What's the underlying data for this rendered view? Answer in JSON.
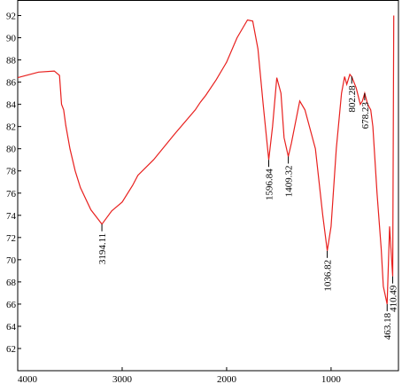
{
  "chart_data": {
    "type": "line",
    "x": [
      4000,
      3800,
      3650,
      3600,
      3580,
      3560,
      3540,
      3500,
      3450,
      3400,
      3300,
      3194.11,
      3100,
      3000,
      2900,
      2850,
      2700,
      2500,
      2300,
      2250,
      2200,
      2100,
      2000,
      1900,
      1800,
      1750,
      1700,
      1650,
      1596.84,
      1560,
      1520,
      1480,
      1450,
      1409.32,
      1380,
      1300,
      1250,
      1150,
      1080,
      1036.82,
      1000,
      950,
      900,
      870,
      850,
      820,
      802.28,
      760,
      720,
      700,
      678.23,
      650,
      620,
      600,
      560,
      520,
      500,
      463.18,
      440,
      420,
      410.49,
      400
    ],
    "values": [
      86.4,
      86.9,
      87.0,
      86.6,
      84,
      83.5,
      82.1,
      80,
      78,
      76.5,
      74.5,
      73.2,
      74.4,
      75.2,
      76.7,
      77.6,
      79,
      81.3,
      83.5,
      84.2,
      84.8,
      86.2,
      87.8,
      90,
      91.6,
      91.5,
      89,
      84,
      79,
      82,
      86.4,
      85,
      81,
      79.3,
      80.5,
      84.3,
      83.5,
      80,
      74,
      70.8,
      73,
      80,
      85,
      86.5,
      85.8,
      86.7,
      86.5,
      85.5,
      84,
      84.3,
      85,
      84,
      83.5,
      82,
      76,
      71,
      67.6,
      66,
      73,
      70,
      68.5,
      92
    ],
    "color": "#e8201e",
    "xlim": [
      4000,
      355
    ],
    "ylim": [
      60,
      93.4
    ],
    "xticks": [
      4000,
      3000,
      2000,
      1000
    ],
    "yticks": [
      62,
      64,
      66,
      68,
      70,
      72,
      74,
      76,
      78,
      80,
      82,
      84,
      86,
      88,
      90,
      92
    ],
    "peaks": [
      3194.11,
      1596.84,
      1409.32,
      1036.82,
      802.28,
      678.23,
      463.18,
      410.49
    ]
  }
}
